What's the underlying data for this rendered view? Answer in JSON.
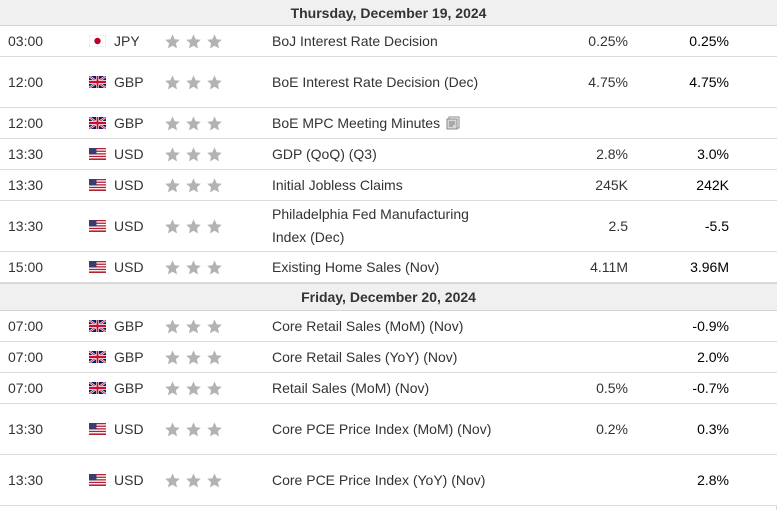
{
  "star_color": "#b3b3b3",
  "sections": [
    {
      "day": "Thursday, December 19, 2024",
      "events": [
        {
          "time": "03:00",
          "flag": "jp-flag-icon",
          "currency": "JPY",
          "event": "BoJ Interest Rate Decision",
          "actual": "0.25%",
          "previous": "0.25%"
        },
        {
          "time": "12:00",
          "flag": "gb-flag-icon",
          "currency": "GBP",
          "event": "BoE Interest Rate Decision (Dec)",
          "actual": "4.75%",
          "previous": "4.75%"
        },
        {
          "time": "12:00",
          "flag": "gb-flag-icon",
          "currency": "GBP",
          "event": "BoE MPC Meeting Minutes",
          "actual": "",
          "previous": "",
          "doc_icon": "document-icon"
        },
        {
          "time": "13:30",
          "flag": "us-flag-icon",
          "currency": "USD",
          "event": "GDP (QoQ) (Q3)",
          "actual": "2.8%",
          "previous": "3.0%"
        },
        {
          "time": "13:30",
          "flag": "us-flag-icon",
          "currency": "USD",
          "event": "Initial Jobless Claims",
          "actual": "245K",
          "previous": "242K"
        },
        {
          "time": "13:30",
          "flag": "us-flag-icon",
          "currency": "USD",
          "event": "Philadelphia Fed Manufacturing Index (Dec)",
          "actual": "2.5",
          "previous": "-5.5"
        },
        {
          "time": "15:00",
          "flag": "us-flag-icon",
          "currency": "USD",
          "event": "Existing Home Sales (Nov)",
          "actual": "4.11M",
          "previous": "3.96M"
        }
      ]
    },
    {
      "day": "Friday, December 20, 2024",
      "events": [
        {
          "time": "07:00",
          "flag": "gb-flag-icon",
          "currency": "GBP",
          "event": "Core Retail Sales (MoM) (Nov)",
          "actual": "",
          "previous": "-0.9%"
        },
        {
          "time": "07:00",
          "flag": "gb-flag-icon",
          "currency": "GBP",
          "event": "Core Retail Sales (YoY) (Nov)",
          "actual": "",
          "previous": "2.0%"
        },
        {
          "time": "07:00",
          "flag": "gb-flag-icon",
          "currency": "GBP",
          "event": "Retail Sales (MoM) (Nov)",
          "actual": "0.5%",
          "previous": "-0.7%"
        },
        {
          "time": "13:30",
          "flag": "us-flag-icon",
          "currency": "USD",
          "event": "Core PCE Price Index (MoM) (Nov)",
          "actual": "0.2%",
          "previous": "0.3%"
        },
        {
          "time": "13:30",
          "flag": "us-flag-icon",
          "currency": "USD",
          "event": "Core PCE Price Index (YoY) (Nov)",
          "actual": "",
          "previous": "2.8%"
        }
      ]
    }
  ]
}
